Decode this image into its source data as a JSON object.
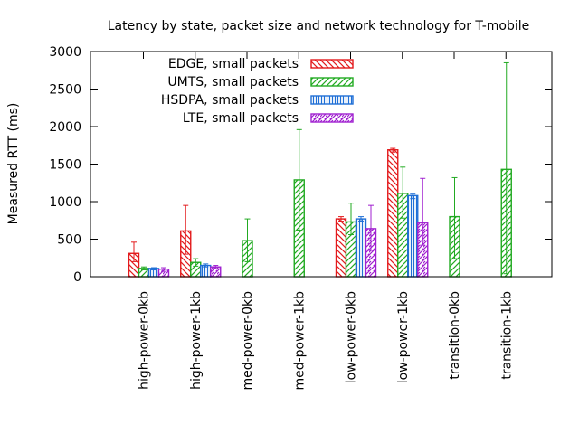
{
  "chart_data": {
    "type": "bar",
    "title": "Latency by state, packet size and network technology for T-mobile",
    "xlabel": "",
    "ylabel": "Measured RTT (ms)",
    "ylim": [
      0,
      3000
    ],
    "yticks": [
      0,
      500,
      1000,
      1500,
      2000,
      2500,
      3000
    ],
    "grid": false,
    "legend_position": "top-left",
    "categories": [
      "high-power-0kb",
      "high-power-1kb",
      "med-power-0kb",
      "med-power-1kb",
      "low-power-0kb",
      "low-power-1kb",
      "transition-0kb",
      "transition-1kb"
    ],
    "series": [
      {
        "name": "EDGE, small packets",
        "color": "#e31a1c",
        "pattern": "diag-down",
        "values": [
          310,
          610,
          null,
          null,
          770,
          1690,
          null,
          null
        ],
        "err_low": [
          200,
          300,
          null,
          null,
          740,
          1660,
          null,
          null
        ],
        "err_high": [
          460,
          950,
          null,
          null,
          800,
          1710,
          null,
          null
        ]
      },
      {
        "name": "UMTS, small packets",
        "color": "#22aa22",
        "pattern": "diag-up",
        "values": [
          110,
          190,
          480,
          1290,
          730,
          1110,
          800,
          1430
        ],
        "err_low": [
          90,
          140,
          200,
          620,
          560,
          780,
          240,
          40
        ],
        "err_high": [
          130,
          240,
          770,
          1960,
          980,
          1460,
          1320,
          2850
        ]
      },
      {
        "name": "HSDPA, small packets",
        "color": "#1f6fd6",
        "pattern": "vertical",
        "values": [
          110,
          150,
          null,
          null,
          770,
          1080,
          null,
          null
        ],
        "err_low": [
          90,
          130,
          null,
          null,
          740,
          1040,
          null,
          null
        ],
        "err_high": [
          120,
          170,
          null,
          null,
          800,
          1100,
          null,
          null
        ]
      },
      {
        "name": "LTE, small packets",
        "color": "#a020d0",
        "pattern": "diag-dense",
        "values": [
          100,
          130,
          null,
          null,
          640,
          720,
          null,
          null
        ],
        "err_low": [
          70,
          110,
          null,
          null,
          350,
          420,
          null,
          null
        ],
        "err_high": [
          120,
          150,
          null,
          null,
          950,
          1310,
          null,
          null
        ]
      }
    ]
  }
}
